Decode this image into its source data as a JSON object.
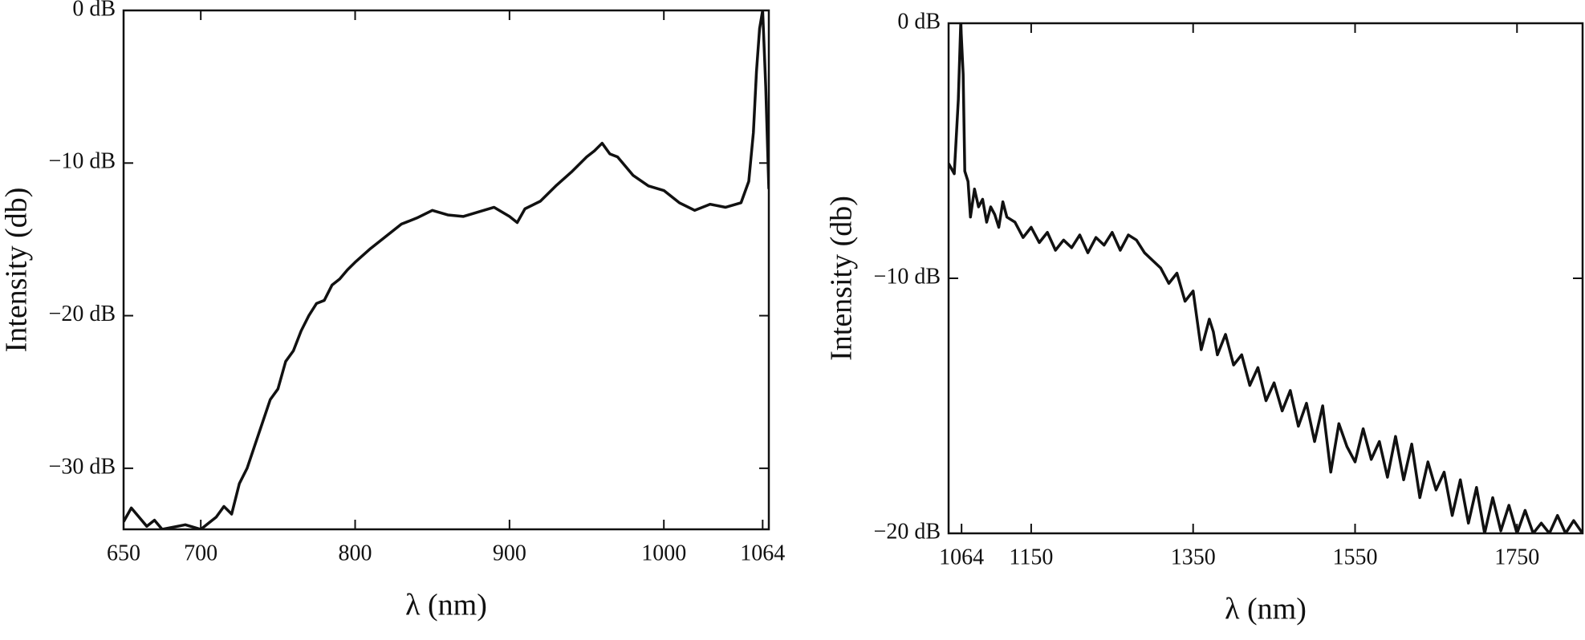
{
  "chart_data": [
    {
      "type": "line",
      "y_label": "Intensity (db)",
      "x_label": "λ (nm)",
      "color": "#111111",
      "x": [
        650,
        655,
        660,
        665,
        670,
        675,
        680,
        690,
        700,
        705,
        710,
        715,
        720,
        725,
        730,
        735,
        740,
        745,
        750,
        755,
        760,
        765,
        770,
        775,
        780,
        785,
        790,
        795,
        800,
        810,
        820,
        830,
        840,
        850,
        860,
        870,
        880,
        890,
        900,
        905,
        910,
        920,
        930,
        940,
        950,
        955,
        960,
        965,
        970,
        980,
        990,
        1000,
        1010,
        1020,
        1030,
        1040,
        1050,
        1055,
        1058,
        1060,
        1062,
        1064,
        1066,
        1068
      ],
      "values": [
        -33.5,
        -32.6,
        -33.2,
        -33.8,
        -33.4,
        -34,
        -33.9,
        -33.7,
        -34,
        -33.6,
        -33.2,
        -32.5,
        -33,
        -31,
        -30,
        -28.5,
        -27,
        -25.5,
        -24.8,
        -23,
        -22.3,
        -21,
        -20,
        -19.2,
        -19,
        -18,
        -17.6,
        -17,
        -16.5,
        -15.6,
        -14.8,
        -14,
        -13.6,
        -13.1,
        -13.4,
        -13.5,
        -13.2,
        -12.9,
        -13.5,
        -13.9,
        -13,
        -12.5,
        -11.5,
        -10.6,
        -9.6,
        -9.2,
        -8.7,
        -9.4,
        -9.6,
        -10.8,
        -11.5,
        -11.8,
        -12.6,
        -13.1,
        -12.7,
        -12.9,
        -12.6,
        -11.2,
        -8,
        -4,
        -1.2,
        0,
        -5,
        -11.7
      ],
      "xlim": [
        650,
        1068
      ],
      "ylim": [
        -34,
        0
      ],
      "xticks": [
        650,
        700,
        800,
        900,
        1000,
        1064
      ],
      "yticks": [
        {
          "value": 0,
          "label": "0 dB"
        },
        {
          "value": -10,
          "label": "−10 dB"
        },
        {
          "value": -20,
          "label": "−20 dB"
        },
        {
          "value": -30,
          "label": "−30 dB"
        }
      ]
    },
    {
      "type": "line",
      "y_label": "Intensity (db)",
      "x_label": "λ (nm)",
      "color": "#111111",
      "x": [
        1048,
        1055,
        1060,
        1063,
        1066,
        1068,
        1072,
        1075,
        1080,
        1085,
        1090,
        1095,
        1100,
        1105,
        1110,
        1115,
        1120,
        1130,
        1140,
        1150,
        1160,
        1170,
        1180,
        1190,
        1200,
        1210,
        1220,
        1230,
        1240,
        1250,
        1260,
        1270,
        1280,
        1290,
        1300,
        1310,
        1320,
        1330,
        1340,
        1350,
        1360,
        1370,
        1375,
        1380,
        1390,
        1400,
        1410,
        1420,
        1430,
        1440,
        1450,
        1460,
        1470,
        1480,
        1490,
        1500,
        1510,
        1520,
        1530,
        1540,
        1550,
        1560,
        1570,
        1580,
        1590,
        1600,
        1610,
        1620,
        1630,
        1640,
        1650,
        1660,
        1670,
        1680,
        1690,
        1700,
        1710,
        1720,
        1730,
        1740,
        1750,
        1760,
        1770,
        1780,
        1790,
        1800,
        1810,
        1820,
        1831
      ],
      "values": [
        -5.5,
        -5.9,
        -3,
        0,
        -2,
        -5.8,
        -6.2,
        -7.6,
        -6.5,
        -7.2,
        -6.9,
        -7.8,
        -7.2,
        -7.5,
        -8,
        -7,
        -7.6,
        -7.8,
        -8.4,
        -8,
        -8.6,
        -8.2,
        -8.9,
        -8.5,
        -8.8,
        -8.3,
        -9,
        -8.4,
        -8.7,
        -8.2,
        -8.9,
        -8.3,
        -8.5,
        -9,
        -9.3,
        -9.6,
        -10.2,
        -9.8,
        -10.9,
        -10.5,
        -12.8,
        -11.6,
        -12.1,
        -13,
        -12.2,
        -13.4,
        -13,
        -14.2,
        -13.5,
        -14.8,
        -14.1,
        -15.2,
        -14.4,
        -15.8,
        -14.9,
        -16.4,
        -15,
        -17.6,
        -15.7,
        -16.6,
        -17.2,
        -15.9,
        -17.1,
        -16.4,
        -17.8,
        -16.2,
        -17.9,
        -16.5,
        -18.6,
        -17.2,
        -18.3,
        -17.6,
        -19.3,
        -17.9,
        -19.6,
        -18.2,
        -20,
        -18.6,
        -19.9,
        -18.9,
        -20,
        -19.1,
        -20,
        -19.6,
        -20,
        -19.3,
        -20,
        -19.5,
        -20
      ],
      "xlim": [
        1048,
        1831
      ],
      "ylim": [
        -20,
        0
      ],
      "xticks": [
        1064,
        1150,
        1350,
        1550,
        1750
      ],
      "yticks": [
        {
          "value": 0,
          "label": "0 dB"
        },
        {
          "value": -10,
          "label": "−10 dB"
        },
        {
          "value": -20,
          "label": "−20 dB"
        }
      ]
    }
  ]
}
